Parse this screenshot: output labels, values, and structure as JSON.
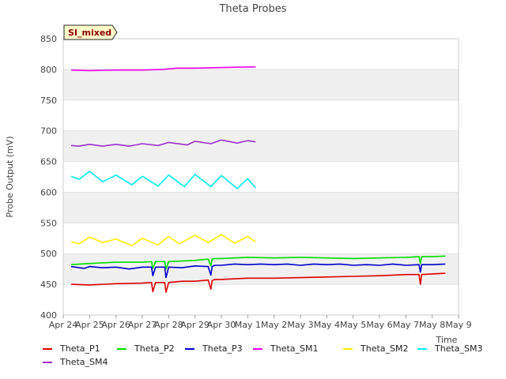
{
  "chart_data": {
    "type": "line",
    "title": "Theta Probes",
    "xlabel": "Time",
    "ylabel": "Probe Output (mV)",
    "badge": "SI_mixed",
    "ylim": [
      400,
      850
    ],
    "xlim": [
      0,
      15
    ],
    "y_ticks": [
      400,
      450,
      500,
      550,
      600,
      650,
      700,
      750,
      800,
      850
    ],
    "x_tick_labels": [
      "Apr 24",
      "Apr 25",
      "Apr 26",
      "Apr 27",
      "Apr 28",
      "Apr 29",
      "Apr 30",
      "May 1",
      "May 2",
      "May 3",
      "May 4",
      "May 5",
      "May 6",
      "May 7",
      "May 8",
      "May 9"
    ],
    "grid": true,
    "series": [
      {
        "name": "Theta_P1",
        "color": "#dd0000",
        "x": [
          0.3,
          1,
          2,
          3,
          3.35,
          3.4,
          3.5,
          3.85,
          3.9,
          4,
          4.5,
          5,
          5.5,
          5.6,
          5.65,
          5.75,
          6,
          7,
          8,
          9,
          10,
          11,
          12,
          13,
          13.5,
          13.55,
          13.6,
          14,
          14.5
        ],
        "values": [
          450,
          449,
          451,
          452,
          453,
          438,
          453,
          453,
          437,
          453,
          455,
          455,
          457,
          442,
          456,
          458,
          458,
          460,
          460,
          461,
          462,
          463,
          464,
          466,
          466,
          450,
          466,
          467,
          468
        ]
      },
      {
        "name": "Theta_P2",
        "color": "#00dd00",
        "x": [
          0.3,
          1,
          2,
          3,
          3.35,
          3.4,
          3.5,
          3.85,
          3.9,
          4,
          5,
          5.5,
          5.6,
          5.65,
          5.75,
          6,
          7,
          8,
          9,
          10,
          11,
          12,
          13,
          13.5,
          13.55,
          13.6,
          14,
          14.5
        ],
        "values": [
          482,
          484,
          486,
          486,
          487,
          476,
          487,
          487,
          475,
          487,
          489,
          491,
          480,
          491,
          492,
          492,
          494,
          493,
          494,
          493,
          492,
          493,
          494,
          495,
          484,
          495,
          495,
          496
        ]
      },
      {
        "name": "Theta_P3",
        "color": "#0000cc",
        "x": [
          0.3,
          0.8,
          1,
          1.5,
          2,
          2.5,
          3,
          3.35,
          3.4,
          3.5,
          3.85,
          3.9,
          4,
          4.5,
          5,
          5.5,
          5.6,
          5.65,
          5.75,
          6,
          6.5,
          7,
          7.5,
          8,
          8.5,
          9,
          9.5,
          10,
          10.5,
          11,
          11.5,
          12,
          12.5,
          13,
          13.5,
          13.55,
          13.6,
          14,
          14.5
        ],
        "values": [
          479,
          476,
          479,
          477,
          478,
          475,
          478,
          478,
          464,
          478,
          478,
          461,
          478,
          477,
          480,
          479,
          465,
          479,
          481,
          481,
          483,
          482,
          483,
          482,
          483,
          481,
          483,
          482,
          483,
          481,
          482,
          481,
          483,
          481,
          482,
          470,
          482,
          482,
          483
        ]
      },
      {
        "name": "Theta_SM1",
        "color": "#ee00ee",
        "x": [
          0.3,
          1,
          2,
          3,
          3.8,
          4.3,
          5,
          6,
          7,
          7.3
        ],
        "values": [
          799,
          798,
          799,
          799,
          800,
          802,
          802,
          803,
          804,
          804
        ]
      },
      {
        "name": "Theta_SM2",
        "color": "#ffee00",
        "x": [
          0.3,
          0.6,
          1,
          1.5,
          2,
          2.6,
          3,
          3.6,
          4,
          4.4,
          5,
          5.5,
          6,
          6.5,
          7,
          7.3
        ],
        "values": [
          519,
          516,
          527,
          518,
          524,
          513,
          525,
          514,
          528,
          516,
          530,
          518,
          531,
          517,
          528,
          519
        ]
      },
      {
        "name": "Theta_SM3",
        "color": "#00eeee",
        "x": [
          0.3,
          0.6,
          1,
          1.5,
          2,
          2.6,
          3,
          3.6,
          4,
          4.6,
          5,
          5.6,
          6,
          6.6,
          7,
          7.3
        ],
        "values": [
          626,
          621,
          634,
          617,
          628,
          612,
          626,
          610,
          628,
          609,
          629,
          609,
          627,
          606,
          622,
          607
        ]
      },
      {
        "name": "Theta_SM4",
        "color": "#9933cc",
        "x": [
          0.3,
          0.6,
          1,
          1.5,
          2,
          2.5,
          3,
          3.6,
          4,
          4.7,
          5,
          5.6,
          6,
          6.6,
          7,
          7.3
        ],
        "values": [
          676,
          675,
          678,
          675,
          678,
          675,
          679,
          676,
          681,
          677,
          683,
          679,
          685,
          680,
          684,
          682
        ]
      }
    ]
  }
}
